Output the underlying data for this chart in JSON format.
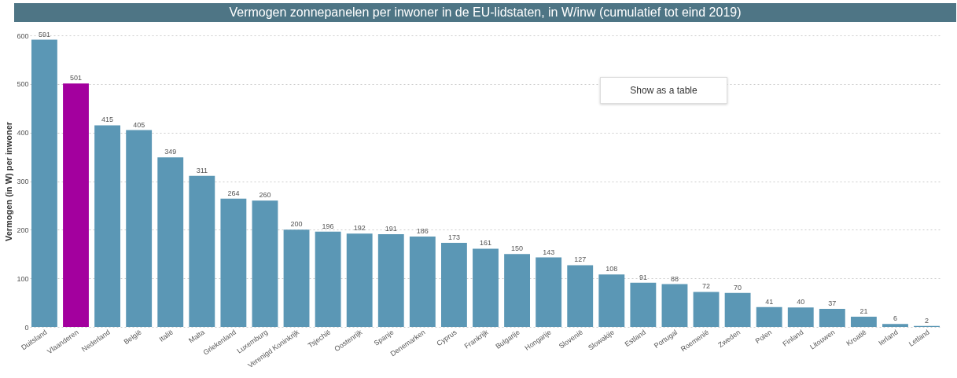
{
  "chart_data": {
    "type": "bar",
    "title": "Vermogen zonnepanelen per inwoner in de EU-lidstaten, in W/inw (cumulatief tot eind 2019)",
    "ylabel": "Vermogen (in W) per inwoner",
    "categories": [
      "Duitsland",
      "Vlaanderen",
      "Nederland",
      "België",
      "Italië",
      "Malta",
      "Griekenland",
      "Luxemburg",
      "Verenigd Koninkrijk",
      "Tsjechië",
      "Oostenrijk",
      "Spanje",
      "Denemarken",
      "Cyprus",
      "Frankrijk",
      "Bulgarije",
      "Hongarije",
      "Slovenië",
      "Slowakije",
      "Estland",
      "Portugal",
      "Roemenië",
      "Zweden",
      "Polen",
      "Finland",
      "Litouwen",
      "Kroatië",
      "Ierland",
      "Letland"
    ],
    "values": [
      591,
      501,
      415,
      405,
      349,
      311,
      264,
      260,
      200,
      196,
      192,
      191,
      186,
      173,
      161,
      150,
      143,
      127,
      108,
      91,
      88,
      72,
      70,
      41,
      40,
      37,
      21,
      6,
      2
    ],
    "colors": [
      "#5b97b5",
      "#a3009e",
      "#5b97b5",
      "#5b97b5",
      "#5b97b5",
      "#5b97b5",
      "#5b97b5",
      "#5b97b5",
      "#5b97b5",
      "#5b97b5",
      "#5b97b5",
      "#5b97b5",
      "#5b97b5",
      "#5b97b5",
      "#5b97b5",
      "#5b97b5",
      "#5b97b5",
      "#5b97b5",
      "#5b97b5",
      "#5b97b5",
      "#5b97b5",
      "#5b97b5",
      "#5b97b5",
      "#5b97b5",
      "#5b97b5",
      "#5b97b5",
      "#5b97b5",
      "#5b97b5",
      "#5b97b5"
    ],
    "ylim": [
      0,
      600
    ],
    "yticks": [
      0,
      100,
      200,
      300,
      400,
      500,
      600
    ],
    "grid": "y",
    "data_labels": true,
    "annotations": [
      "Show as a table"
    ]
  }
}
